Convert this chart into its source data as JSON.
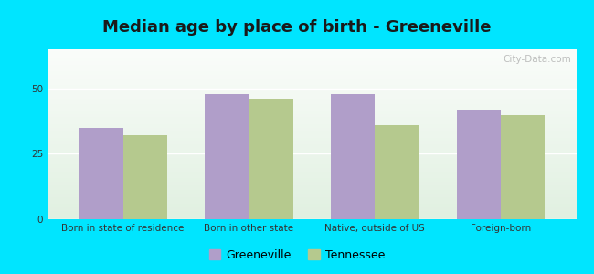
{
  "title": "Median age by place of birth - Greeneville",
  "categories": [
    "Born in state of residence",
    "Born in other state",
    "Native, outside of US",
    "Foreign-born"
  ],
  "greeneville_values": [
    35.0,
    48.0,
    48.0,
    42.0
  ],
  "tennessee_values": [
    32.0,
    46.0,
    36.0,
    40.0
  ],
  "greeneville_color": "#b09ec9",
  "tennessee_color": "#b5c98e",
  "background_outer": "#00e5ff",
  "ylim": [
    0,
    65
  ],
  "yticks": [
    0,
    25,
    50
  ],
  "bar_width": 0.35,
  "legend_greeneville": "Greeneville",
  "legend_tennessee": "Tennessee",
  "title_fontsize": 13,
  "tick_fontsize": 7.5,
  "legend_fontsize": 9,
  "watermark": "City-Data.com"
}
